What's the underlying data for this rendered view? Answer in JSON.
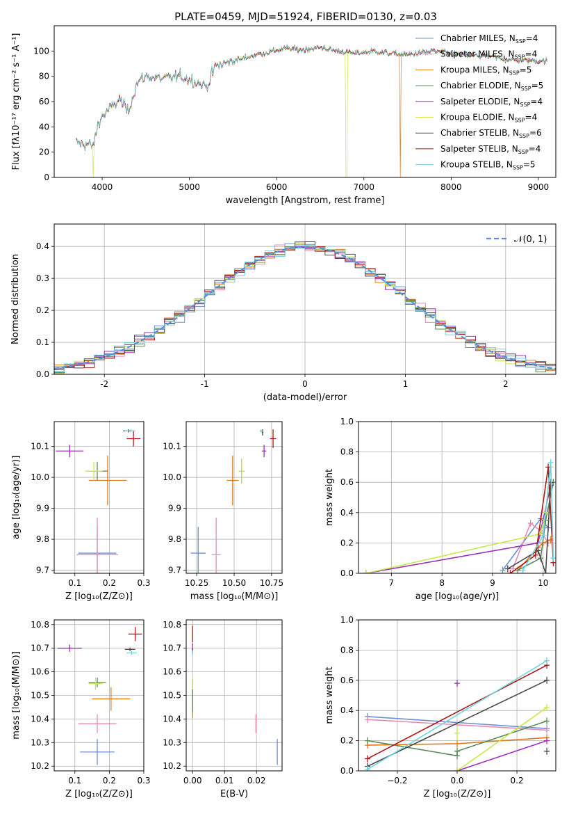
{
  "figure_title": "PLATE=0459, MJD=51924, FIBERID=0130, z=0.03",
  "models": [
    {
      "label": "Chabrier MILES, N",
      "sub": "SSP",
      "tail": "=4",
      "color": "#6b8fd6"
    },
    {
      "label": "Salpeter MILES, N",
      "sub": "SSP",
      "tail": "=4",
      "color": "#e88ab8"
    },
    {
      "label": "Kroupa MILES, N",
      "sub": "SSP",
      "tail": "=5",
      "color": "#e07b1a"
    },
    {
      "label": "Chabrier ELODIE, N",
      "sub": "SSP",
      "tail": "=5",
      "color": "#5a8a5a"
    },
    {
      "label": "Salpeter ELODIE, N",
      "sub": "SSP",
      "tail": "=4",
      "color": "#9b30b8"
    },
    {
      "label": "Kroupa ELODIE, N",
      "sub": "SSP",
      "tail": "=4",
      "color": "#c8e84a"
    },
    {
      "label": "Chabrier STELIB, N",
      "sub": "SSP",
      "tail": "=6",
      "color": "#4a4a4a"
    },
    {
      "label": "Salpeter STELIB, N",
      "sub": "SSP",
      "tail": "=4",
      "color": "#b01818"
    },
    {
      "label": "Kroupa STELIB, N",
      "sub": "SSP",
      "tail": "=5",
      "color": "#6fd3e0"
    }
  ],
  "chart_data": [
    {
      "id": "spectrum",
      "type": "line",
      "xlabel": "wavelength [Angstrom, rest frame]",
      "ylabel": "Flux [fλ10⁻¹⁷ erg cm⁻² s⁻¹ A⁻¹]",
      "xlim": [
        3450,
        9200
      ],
      "ylim": [
        0,
        120
      ],
      "xticks": [
        4000,
        5000,
        6000,
        7000,
        8000,
        9000
      ],
      "yticks": [
        0,
        20,
        40,
        60,
        80,
        100
      ],
      "x_range": [
        3700,
        9100
      ],
      "anchors": [
        [
          3700,
          28
        ],
        [
          3900,
          25
        ],
        [
          3950,
          42
        ],
        [
          4000,
          48
        ],
        [
          4100,
          55
        ],
        [
          4200,
          62
        ],
        [
          4300,
          52
        ],
        [
          4400,
          75
        ],
        [
          4500,
          80
        ],
        [
          4700,
          78
        ],
        [
          4900,
          80
        ],
        [
          5100,
          75
        ],
        [
          5200,
          72
        ],
        [
          5300,
          88
        ],
        [
          5500,
          92
        ],
        [
          5700,
          96
        ],
        [
          5900,
          99
        ],
        [
          6100,
          102
        ],
        [
          6300,
          101
        ],
        [
          6500,
          103
        ],
        [
          6700,
          100
        ],
        [
          6900,
          98
        ],
        [
          7100,
          100
        ],
        [
          7300,
          98
        ],
        [
          7500,
          97
        ],
        [
          7800,
          100
        ],
        [
          8100,
          97
        ],
        [
          8400,
          96
        ],
        [
          8700,
          93
        ],
        [
          9100,
          92
        ]
      ],
      "dropouts": [
        {
          "x": 3900,
          "model": 5
        },
        {
          "x": 6800,
          "model": 5
        },
        {
          "x": 7420,
          "model": 2
        }
      ]
    },
    {
      "id": "residual_histogram",
      "type": "histogram",
      "xlabel": "(data-model)/error",
      "ylabel": "Normed distribution",
      "xlim": [
        -2.5,
        2.5
      ],
      "ylim": [
        0,
        0.47
      ],
      "xticks": [
        -2,
        -1,
        0,
        1,
        2
      ],
      "yticks": [
        0.0,
        0.1,
        0.2,
        0.3,
        0.4
      ],
      "bin_width": 0.1,
      "reference_curve": {
        "label": "𝒩(0, 1)",
        "mean": 0,
        "sigma": 1,
        "color": "#5b8fd9"
      }
    },
    {
      "id": "age_vs_Z",
      "type": "errorbar",
      "xlabel": "Z [log₁₀(Z/Z⊙)]",
      "ylabel": "age  [log₁₀(age/yr)]",
      "xlim": [
        0.04,
        0.3
      ],
      "ylim": [
        9.69,
        10.18
      ],
      "xticks": [
        0.1,
        0.2,
        0.3
      ],
      "yticks": [
        9.7,
        9.8,
        9.9,
        10.0,
        10.1
      ],
      "points": [
        {
          "model": 0,
          "x": 0.165,
          "y": 9.755,
          "xe": 0.055,
          "ye": 0.085
        },
        {
          "model": 1,
          "x": 0.165,
          "y": 9.75,
          "xe": 0.06,
          "ye": 0.12
        },
        {
          "model": 2,
          "x": 0.195,
          "y": 9.99,
          "xe": 0.055,
          "ye": 0.08
        },
        {
          "model": 3,
          "x": 0.165,
          "y": 10.02,
          "xe": 0.03,
          "ye": 0.03
        },
        {
          "model": 4,
          "x": 0.085,
          "y": 10.085,
          "xe": 0.04,
          "ye": 0.02
        },
        {
          "model": 5,
          "x": 0.155,
          "y": 10.02,
          "xe": 0.025,
          "ye": 0.03
        },
        {
          "model": 6,
          "x": 0.255,
          "y": 10.15,
          "xe": 0.015,
          "ye": 0.005
        },
        {
          "model": 7,
          "x": 0.27,
          "y": 10.125,
          "xe": 0.02,
          "ye": 0.025
        },
        {
          "model": 8,
          "x": 0.26,
          "y": 10.15,
          "xe": 0.015,
          "ye": 0.005
        }
      ]
    },
    {
      "id": "age_vs_mass",
      "type": "errorbar",
      "xlabel": "mass [log₁₀(M/M⊙)]",
      "ylabel": "",
      "xlim": [
        10.18,
        10.82
      ],
      "ylim": [
        9.69,
        10.18
      ],
      "xticks": [
        10.25,
        10.5,
        10.75
      ],
      "yticks": [
        9.7,
        9.8,
        9.9,
        10.0,
        10.1
      ],
      "points": [
        {
          "model": 0,
          "x": 10.26,
          "y": 9.755,
          "xe": 0.05,
          "ye": 0.085
        },
        {
          "model": 1,
          "x": 10.38,
          "y": 9.75,
          "xe": 0.03,
          "ye": 0.12
        },
        {
          "model": 2,
          "x": 10.49,
          "y": 9.99,
          "xe": 0.04,
          "ye": 0.08
        },
        {
          "model": 3,
          "x": 10.55,
          "y": 10.02,
          "xe": 0.02,
          "ye": 0.04
        },
        {
          "model": 4,
          "x": 10.7,
          "y": 10.085,
          "xe": 0.015,
          "ye": 0.02
        },
        {
          "model": 5,
          "x": 10.55,
          "y": 10.02,
          "xe": 0.02,
          "ye": 0.04
        },
        {
          "model": 6,
          "x": 10.69,
          "y": 10.145,
          "xe": 0.005,
          "ye": 0.01
        },
        {
          "model": 7,
          "x": 10.76,
          "y": 10.125,
          "xe": 0.02,
          "ye": 0.03
        },
        {
          "model": 8,
          "x": 10.68,
          "y": 10.15,
          "xe": 0.01,
          "ye": 0.005
        }
      ]
    },
    {
      "id": "mass_weight_vs_age",
      "type": "line",
      "xlabel": "age  [log₁₀(age/yr)]",
      "ylabel": "mass weight",
      "xlim": [
        6.35,
        10.25
      ],
      "ylim": [
        0,
        1.0
      ],
      "xticks": [
        7,
        8,
        9,
        10
      ],
      "yticks": [
        0.0,
        0.2,
        0.4,
        0.6,
        0.8,
        1.0
      ],
      "series": [
        {
          "model": 0,
          "x": [
            9.2,
            9.95,
            10.1
          ],
          "y": [
            0.02,
            0.36,
            0.3
          ]
        },
        {
          "model": 1,
          "x": [
            9.4,
            9.75,
            9.95,
            10.1
          ],
          "y": [
            0.03,
            0.33,
            0.28,
            0.2
          ]
        },
        {
          "model": 2,
          "x": [
            9.5,
            9.9,
            10.0,
            10.15
          ],
          "y": [
            0.02,
            0.17,
            0.2,
            0.22
          ]
        },
        {
          "model": 3,
          "x": [
            9.5,
            9.95,
            10.05,
            10.2
          ],
          "y": [
            0.02,
            0.1,
            0.35,
            0.6
          ]
        },
        {
          "model": 4,
          "x": [
            6.5,
            9.9,
            10.15
          ],
          "y": [
            0.0,
            0.2,
            0.58
          ]
        },
        {
          "model": 5,
          "x": [
            6.5,
            9.95,
            10.05,
            10.15
          ],
          "y": [
            0.0,
            0.26,
            0.4,
            0.7
          ]
        },
        {
          "model": 6,
          "x": [
            9.3,
            9.9,
            10.05,
            10.15
          ],
          "y": [
            0.03,
            0.15,
            0.0,
            0.6
          ]
        },
        {
          "model": 7,
          "x": [
            9.35,
            9.85,
            10.1,
            10.2
          ],
          "y": [
            0.0,
            0.12,
            0.7,
            0.07
          ]
        },
        {
          "model": 8,
          "x": [
            9.6,
            10.0,
            10.15,
            10.2
          ],
          "y": [
            0.02,
            0.25,
            0.73,
            0.1
          ]
        }
      ]
    },
    {
      "id": "mass_vs_Z",
      "type": "errorbar",
      "xlabel": "Z [log₁₀(Z/Z⊙)]",
      "ylabel": "mass [log₁₀(M/M⊙)]",
      "xlim": [
        0.04,
        0.3
      ],
      "ylim": [
        10.18,
        10.82
      ],
      "xticks": [
        0.1,
        0.2,
        0.3
      ],
      "yticks": [
        10.2,
        10.3,
        10.4,
        10.5,
        10.6,
        10.7,
        10.8
      ],
      "points": [
        {
          "model": 0,
          "x": 0.165,
          "y": 10.26,
          "xe": 0.05,
          "ye": 0.055
        },
        {
          "model": 1,
          "x": 0.165,
          "y": 10.38,
          "xe": 0.055,
          "ye": 0.04
        },
        {
          "model": 2,
          "x": 0.205,
          "y": 10.485,
          "xe": 0.055,
          "ye": 0.05
        },
        {
          "model": 3,
          "x": 0.165,
          "y": 10.555,
          "xe": 0.025,
          "ye": 0.02
        },
        {
          "model": 4,
          "x": 0.085,
          "y": 10.7,
          "xe": 0.035,
          "ye": 0.015
        },
        {
          "model": 5,
          "x": 0.16,
          "y": 10.55,
          "xe": 0.02,
          "ye": 0.025
        },
        {
          "model": 6,
          "x": 0.26,
          "y": 10.695,
          "xe": 0.015,
          "ye": 0.008
        },
        {
          "model": 7,
          "x": 0.275,
          "y": 10.76,
          "xe": 0.02,
          "ye": 0.03
        },
        {
          "model": 8,
          "x": 0.265,
          "y": 10.68,
          "xe": 0.015,
          "ye": 0.008
        }
      ]
    },
    {
      "id": "mass_vs_EBV",
      "type": "errorbar",
      "xlabel": "E(B-V)",
      "ylabel": "",
      "xlim": [
        -0.002,
        0.028
      ],
      "ylim": [
        10.18,
        10.82
      ],
      "xticks": [
        0.0,
        0.01,
        0.02
      ],
      "yticks": [
        10.2,
        10.3,
        10.4,
        10.5,
        10.6,
        10.7,
        10.8
      ],
      "points": [
        {
          "model": 0,
          "x": 0.0265,
          "y": 10.26,
          "xe": 0,
          "ye": 0.055
        },
        {
          "model": 1,
          "x": 0.0198,
          "y": 10.38,
          "xe": 0,
          "ye": 0.04
        },
        {
          "model": 2,
          "x": 0.0,
          "y": 10.48,
          "xe": 0,
          "ye": 0.075
        },
        {
          "model": 3,
          "x": 0.0,
          "y": 10.5,
          "xe": 0,
          "ye": 0.07
        },
        {
          "model": 4,
          "x": 0.0,
          "y": 10.7,
          "xe": 0,
          "ye": 0.02
        },
        {
          "model": 5,
          "x": 0.0,
          "y": 10.55,
          "xe": 0,
          "ye": 0.025
        },
        {
          "model": 6,
          "x": 0.0,
          "y": 10.69,
          "xe": 0,
          "ye": 0.01
        },
        {
          "model": 7,
          "x": 0.0,
          "y": 10.76,
          "xe": 0,
          "ye": 0.035
        },
        {
          "model": 8,
          "x": 0.0,
          "y": 10.68,
          "xe": 0,
          "ye": 0.01
        }
      ]
    },
    {
      "id": "mass_weight_vs_Z",
      "type": "line",
      "xlabel": "Z [log₁₀(Z/Z⊙)]",
      "ylabel": "mass weight",
      "xlim": [
        -0.33,
        0.33
      ],
      "ylim": [
        0,
        1.0
      ],
      "xticks": [
        -0.2,
        0.0,
        0.2
      ],
      "xtick_labels": [
        "−0.2",
        "0.0",
        "0.2"
      ],
      "yticks": [
        0.0,
        0.2,
        0.4,
        0.6,
        0.8,
        1.0
      ],
      "series": [
        {
          "model": 0,
          "x": [
            -0.3,
            0.3
          ],
          "y": [
            0.36,
            0.28
          ]
        },
        {
          "model": 1,
          "x": [
            -0.3,
            0.3
          ],
          "y": [
            0.34,
            0.27
          ]
        },
        {
          "model": 2,
          "x": [
            -0.3,
            0.0,
            0.3
          ],
          "y": [
            0.17,
            0.18,
            0.22
          ]
        },
        {
          "model": 3,
          "x": [
            -0.3,
            0.0,
            0.0,
            0.3
          ],
          "y": [
            0.2,
            0.1,
            0.13,
            0.33
          ]
        },
        {
          "model": 4,
          "x": [
            0.0,
            0.3
          ],
          "y": [
            0.0,
            0.2
          ]
        },
        {
          "model": 5,
          "x": [
            0.0,
            0.3
          ],
          "y": [
            0.0,
            0.42
          ]
        },
        {
          "model": 6,
          "x": [
            -0.3,
            0.3
          ],
          "y": [
            0.03,
            0.6
          ]
        },
        {
          "model": 7,
          "x": [
            -0.3,
            0.3
          ],
          "y": [
            0.08,
            0.7
          ]
        },
        {
          "model": 8,
          "x": [
            -0.3,
            0.3
          ],
          "y": [
            0.01,
            0.73
          ]
        }
      ],
      "markers": [
        {
          "model": 4,
          "x": 0.0,
          "y": 0.58,
          "ye": 0.0
        },
        {
          "model": 5,
          "x": 0.0,
          "y": 0.25,
          "ye": 0.05
        },
        {
          "model": 6,
          "x": 0.3,
          "y": 0.13,
          "ye": 0.0
        }
      ]
    }
  ]
}
